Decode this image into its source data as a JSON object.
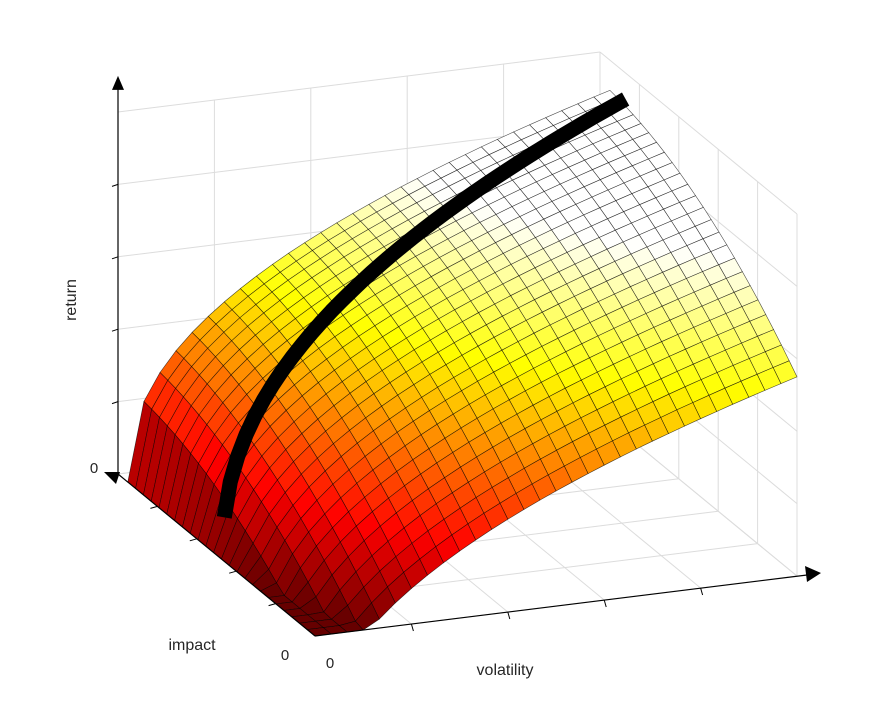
{
  "chart_data": {
    "type": "surface",
    "title": "",
    "xlabel": "volatility",
    "ylabel": "impact",
    "zlabel": "return",
    "x_tick_labels": [
      "0"
    ],
    "y_tick_labels": [
      "0"
    ],
    "z_tick_labels": [
      "0"
    ],
    "grid": true,
    "box": true,
    "colormap": "hot",
    "axis_color": "#000000",
    "grid_color": "#dcdcdc",
    "surface_edge_color": "#000000",
    "ridge_color": "#000000",
    "ridge_line": {
      "description_free": true
    }
  }
}
